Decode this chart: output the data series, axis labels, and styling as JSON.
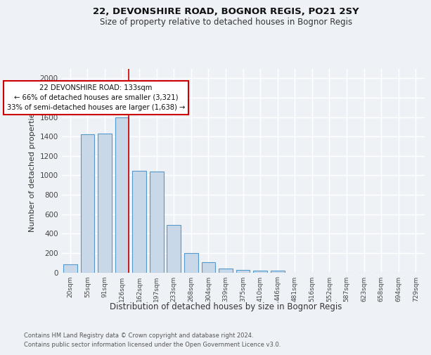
{
  "title": "22, DEVONSHIRE ROAD, BOGNOR REGIS, PO21 2SY",
  "subtitle": "Size of property relative to detached houses in Bognor Regis",
  "xlabel": "Distribution of detached houses by size in Bognor Regis",
  "ylabel": "Number of detached properties",
  "bin_labels": [
    "20sqm",
    "55sqm",
    "91sqm",
    "126sqm",
    "162sqm",
    "197sqm",
    "233sqm",
    "268sqm",
    "304sqm",
    "339sqm",
    "375sqm",
    "410sqm",
    "446sqm",
    "481sqm",
    "516sqm",
    "552sqm",
    "587sqm",
    "623sqm",
    "658sqm",
    "694sqm",
    "729sqm"
  ],
  "bar_heights": [
    80,
    1420,
    1430,
    1600,
    1050,
    1040,
    490,
    200,
    105,
    40,
    28,
    20,
    18,
    0,
    0,
    0,
    0,
    0,
    0,
    0,
    0
  ],
  "bar_color": "#c8d8e8",
  "bar_edge_color": "#5599cc",
  "ylim": [
    0,
    2100
  ],
  "yticks": [
    0,
    200,
    400,
    600,
    800,
    1000,
    1200,
    1400,
    1600,
    1800,
    2000
  ],
  "red_line_bin_index": 3,
  "annotation_text": "22 DEVONSHIRE ROAD: 133sqm\n← 66% of detached houses are smaller (3,321)\n33% of semi-detached houses are larger (1,638) →",
  "annotation_box_color": "#ffffff",
  "annotation_box_edge": "#cc0000",
  "red_line_color": "#cc0000",
  "footnote": "Contains HM Land Registry data © Crown copyright and database right 2024.\nContains public sector information licensed under the Open Government Licence v3.0.",
  "background_color": "#eef2f7",
  "grid_color": "#ffffff"
}
